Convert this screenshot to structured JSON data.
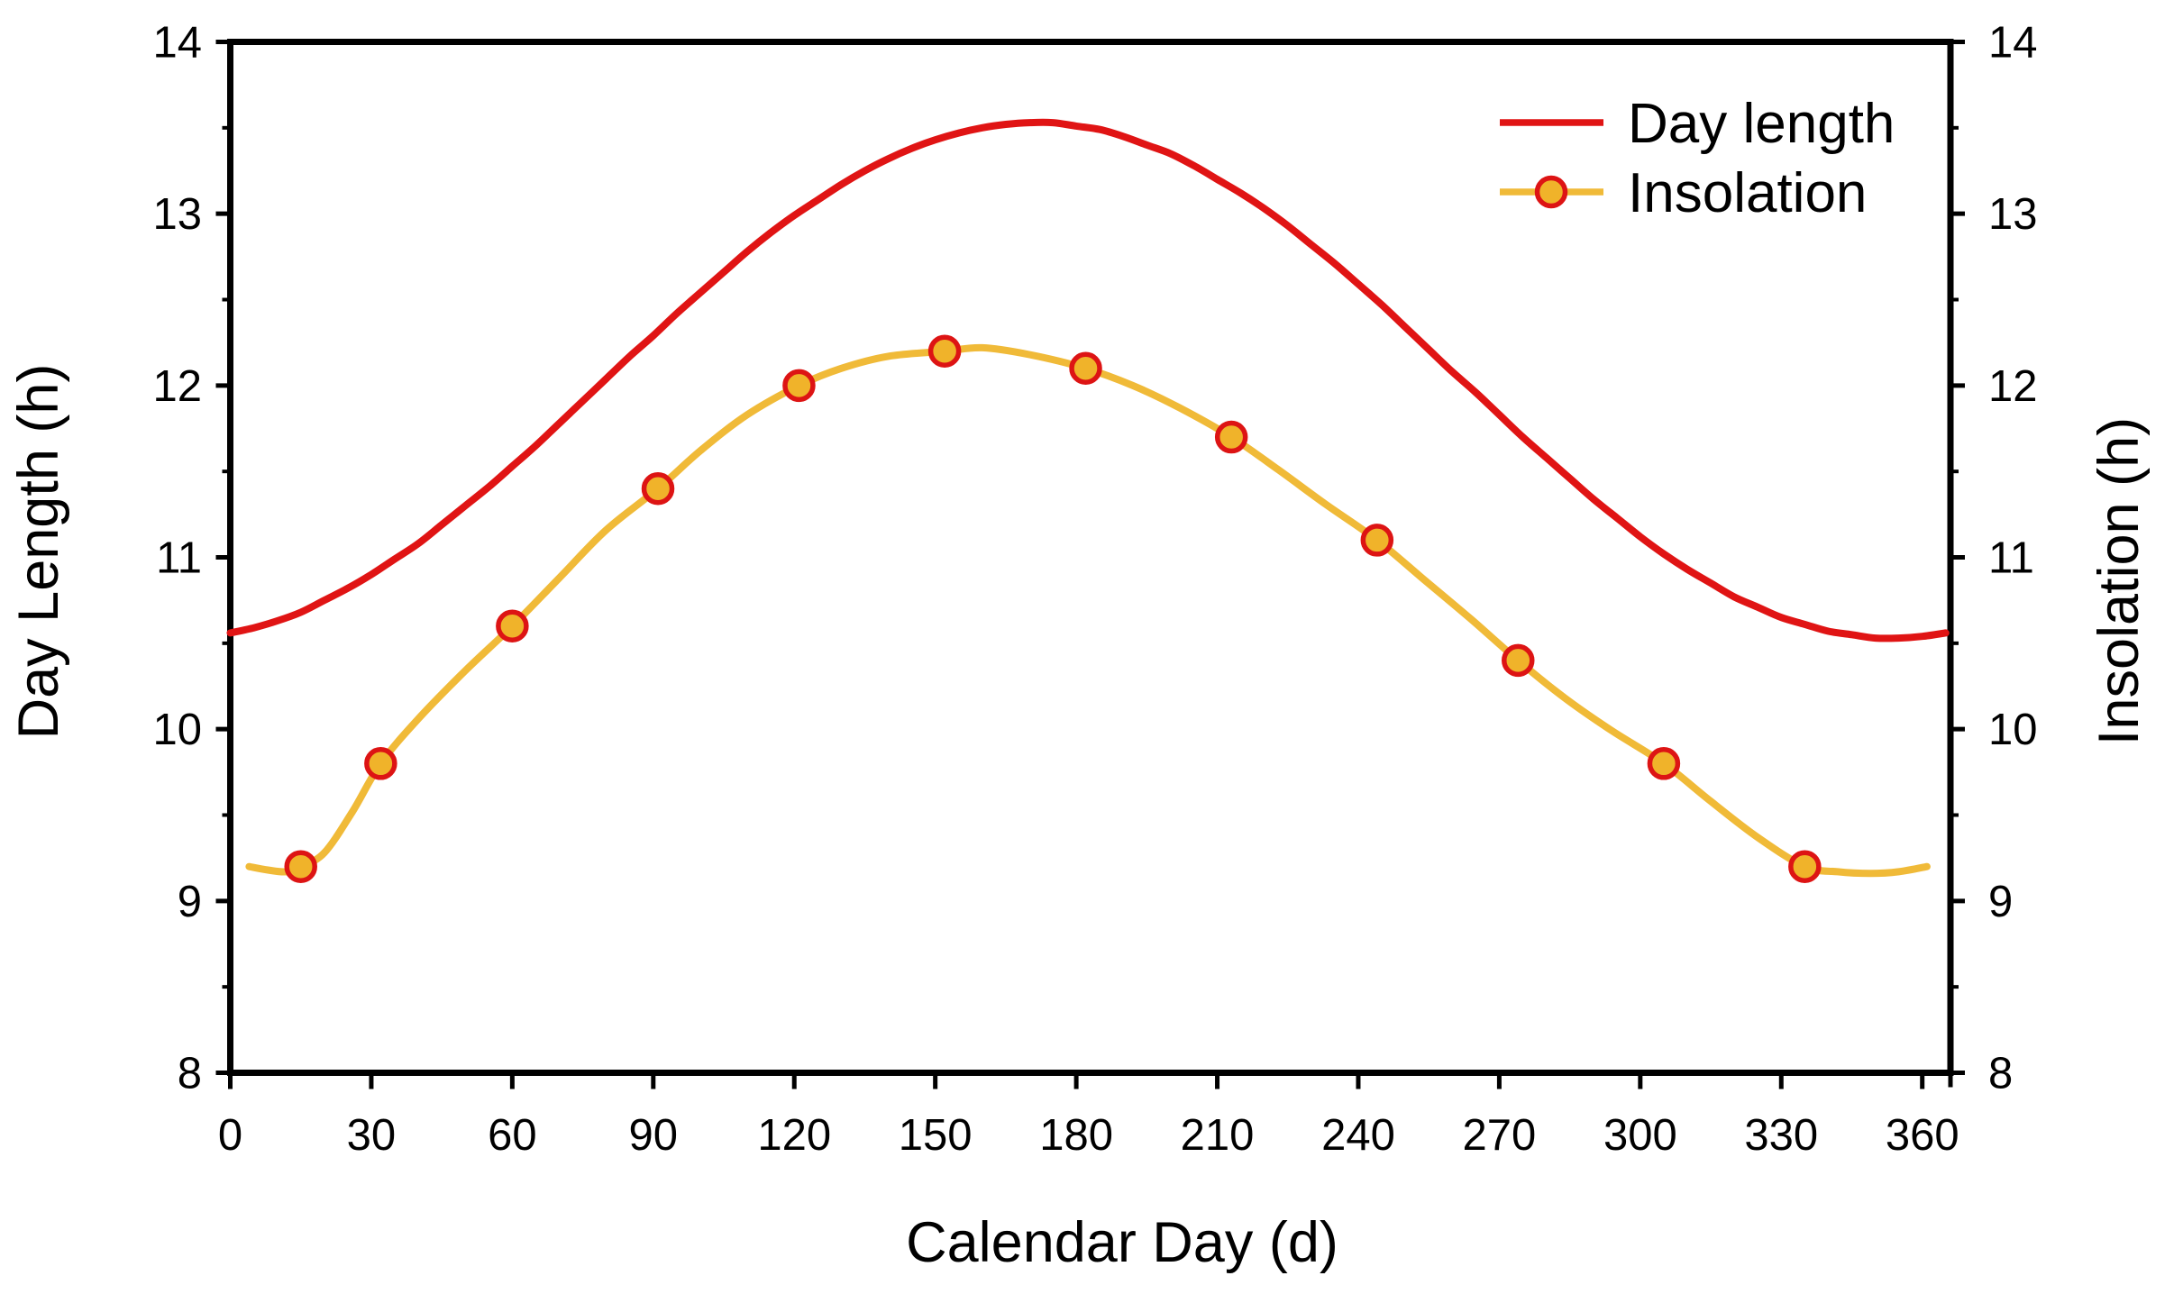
{
  "figure": {
    "background": "#ffffff",
    "axis_color": "#000000",
    "text_color": "#000000"
  },
  "chart_data": {
    "type": "line",
    "title": "",
    "xlabel": "Calendar Day (d)",
    "ylabel_left": "Day Length (h)",
    "ylabel_right": "Insolation (h)",
    "xlim": [
      0,
      366
    ],
    "ylim": [
      8,
      14
    ],
    "x_ticks": [
      0,
      30,
      60,
      90,
      120,
      150,
      180,
      210,
      240,
      270,
      300,
      330,
      360
    ],
    "y_ticks_left": [
      8,
      9,
      10,
      11,
      12,
      13,
      14
    ],
    "y_ticks_right": [
      8,
      9,
      10,
      11,
      12,
      13,
      14
    ],
    "y_minor_ticks": [
      8.5,
      9.5,
      10.5,
      11.5,
      12.5,
      13.5
    ],
    "grid": false,
    "legend": {
      "position": "top-right",
      "items": [
        {
          "label": "Day length",
          "symbol": "line",
          "color": "#e01414"
        },
        {
          "label": "Insolation",
          "symbol": "line-circle-marker",
          "color": "#f0ba38",
          "marker_fill": "#f0b32a",
          "marker_stroke": "#dd1414"
        }
      ]
    },
    "series": [
      {
        "name": "Day length",
        "type": "line",
        "color": "#e01414",
        "line_width": 8,
        "x": [
          0,
          5,
          10,
          15,
          20,
          25,
          30,
          35,
          40,
          45,
          50,
          55,
          60,
          65,
          70,
          75,
          80,
          85,
          90,
          95,
          100,
          105,
          110,
          115,
          120,
          125,
          130,
          135,
          140,
          145,
          150,
          155,
          160,
          165,
          170,
          175,
          180,
          185,
          190,
          195,
          200,
          205,
          210,
          215,
          220,
          225,
          230,
          235,
          240,
          245,
          250,
          255,
          260,
          265,
          270,
          275,
          280,
          285,
          290,
          295,
          300,
          305,
          310,
          315,
          320,
          325,
          330,
          335,
          340,
          345,
          350,
          355,
          360,
          365
        ],
        "y": [
          10.56,
          10.59,
          10.63,
          10.68,
          10.75,
          10.82,
          10.9,
          10.99,
          11.08,
          11.19,
          11.3,
          11.41,
          11.53,
          11.65,
          11.78,
          11.91,
          12.04,
          12.17,
          12.29,
          12.42,
          12.54,
          12.66,
          12.78,
          12.89,
          12.99,
          13.08,
          13.17,
          13.25,
          13.32,
          13.38,
          13.43,
          13.47,
          13.5,
          13.52,
          13.53,
          13.53,
          13.51,
          13.49,
          13.45,
          13.4,
          13.35,
          13.28,
          13.2,
          13.12,
          13.03,
          12.93,
          12.82,
          12.71,
          12.59,
          12.47,
          12.34,
          12.21,
          12.08,
          11.96,
          11.83,
          11.7,
          11.58,
          11.46,
          11.34,
          11.23,
          11.12,
          11.02,
          10.93,
          10.85,
          10.77,
          10.71,
          10.65,
          10.61,
          10.57,
          10.55,
          10.53,
          10.53,
          10.54,
          10.56
        ],
        "peak": {
          "x": 170,
          "y": 13.5
        },
        "min": {
          "x": 353,
          "y": 10.5
        }
      },
      {
        "name": "Insolation",
        "type": "line",
        "color": "#f0ba38",
        "line_width": 8,
        "marker": {
          "shape": "circle",
          "fill": "#f0b32a",
          "stroke": "#dd1414",
          "radius": 15.5,
          "stroke_width": 5.5
        },
        "marker_x": [
          15,
          32,
          60,
          91,
          121,
          152,
          182,
          213,
          244,
          274,
          305,
          335
        ],
        "marker_y": [
          9.2,
          9.8,
          10.6,
          11.4,
          12.0,
          12.2,
          12.1,
          11.7,
          11.1,
          10.4,
          9.8,
          9.2
        ],
        "x": [
          4,
          8,
          12,
          15,
          20,
          26,
          32,
          40,
          50,
          60,
          70,
          80,
          91,
          100,
          110,
          121,
          130,
          140,
          152,
          160,
          170,
          182,
          192,
          202,
          213,
          223,
          233,
          244,
          254,
          264,
          274,
          284,
          294,
          305,
          315,
          325,
          335,
          342,
          349,
          355,
          361
        ],
        "y": [
          9.2,
          9.18,
          9.17,
          9.2,
          9.28,
          9.52,
          9.8,
          10.06,
          10.34,
          10.6,
          10.88,
          11.16,
          11.4,
          11.62,
          11.83,
          12.0,
          12.1,
          12.17,
          12.2,
          12.22,
          12.18,
          12.1,
          12.0,
          11.87,
          11.7,
          11.51,
          11.31,
          11.1,
          10.87,
          10.64,
          10.4,
          10.18,
          9.99,
          9.8,
          9.58,
          9.37,
          9.2,
          9.17,
          9.16,
          9.17,
          9.2
        ]
      }
    ]
  }
}
